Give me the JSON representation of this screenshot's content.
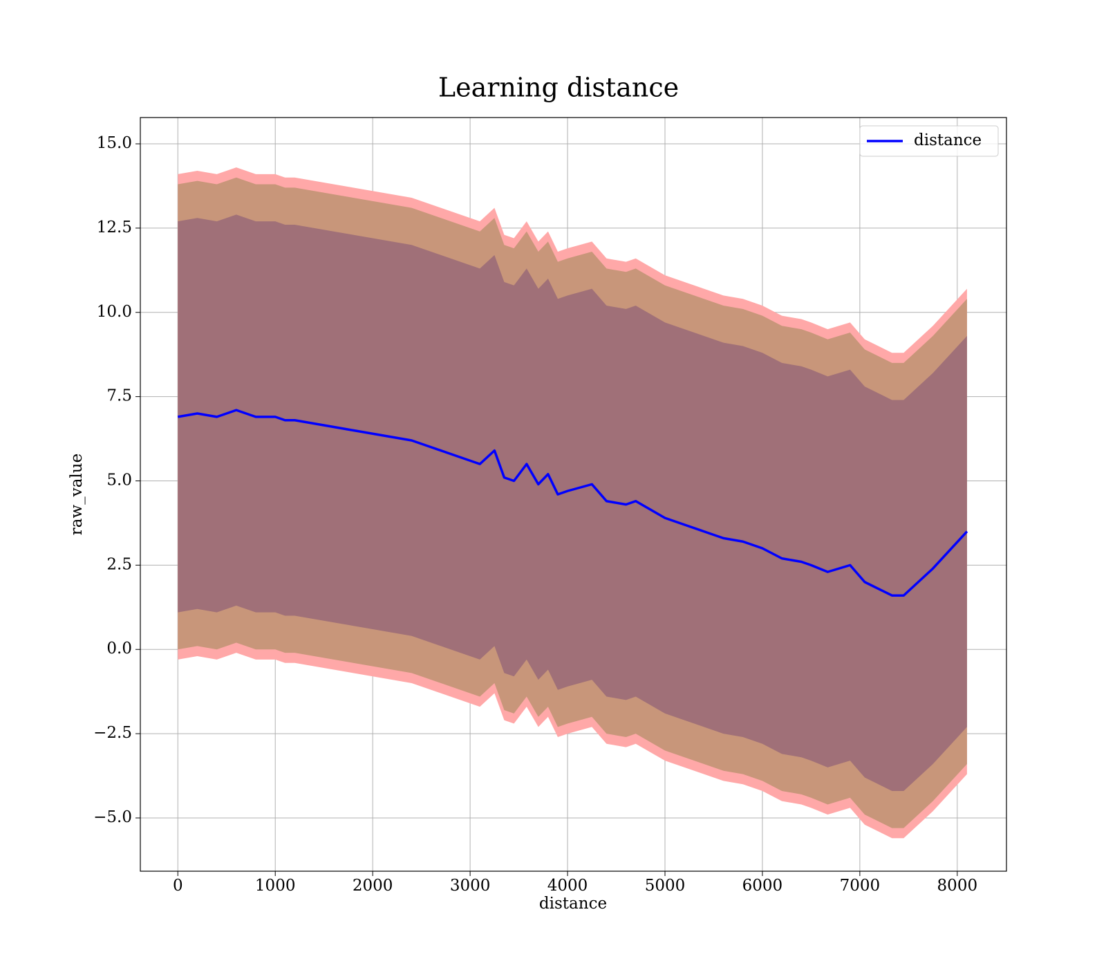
{
  "chart_data": {
    "type": "line",
    "title": "Learning distance",
    "xlabel": "distance",
    "ylabel": "raw_value",
    "x": [
      0,
      200,
      400,
      600,
      800,
      1000,
      1100,
      1200,
      1400,
      1600,
      1800,
      2000,
      2200,
      2400,
      2600,
      2800,
      3000,
      3100,
      3250,
      3350,
      3450,
      3580,
      3700,
      3800,
      3900,
      4000,
      4250,
      4400,
      4600,
      4700,
      5000,
      5200,
      5400,
      5600,
      5800,
      6000,
      6200,
      6400,
      6500,
      6670,
      6900,
      7050,
      7330,
      7450,
      7750,
      8100
    ],
    "series": [
      {
        "name": "distance",
        "color": "#0000ff",
        "values": [
          6.9,
          7.0,
          6.9,
          7.1,
          6.9,
          6.9,
          6.8,
          6.8,
          6.7,
          6.6,
          6.5,
          6.4,
          6.3,
          6.2,
          6.0,
          5.8,
          5.6,
          5.5,
          5.9,
          5.1,
          5.0,
          5.5,
          4.9,
          5.2,
          4.6,
          4.7,
          4.9,
          4.4,
          4.3,
          4.4,
          3.9,
          3.7,
          3.5,
          3.3,
          3.2,
          3.0,
          2.7,
          2.6,
          2.5,
          2.3,
          2.5,
          2.0,
          1.6,
          1.6,
          2.4,
          3.5
        ]
      }
    ],
    "bands": [
      {
        "color": "#ffa8a8",
        "upper": [
          14.1,
          14.2,
          14.1,
          14.3,
          14.1,
          14.1,
          14.0,
          14.0,
          13.9,
          13.8,
          13.7,
          13.6,
          13.5,
          13.4,
          13.2,
          13.0,
          12.8,
          12.7,
          13.1,
          12.3,
          12.2,
          12.7,
          12.1,
          12.4,
          11.8,
          11.9,
          12.1,
          11.6,
          11.5,
          11.6,
          11.1,
          10.9,
          10.7,
          10.5,
          10.4,
          10.2,
          9.9,
          9.8,
          9.7,
          9.5,
          9.7,
          9.2,
          8.8,
          8.8,
          9.6,
          10.7
        ],
        "lower": [
          -0.3,
          -0.2,
          -0.3,
          -0.1,
          -0.3,
          -0.3,
          -0.4,
          -0.4,
          -0.5,
          -0.6,
          -0.7,
          -0.8,
          -0.9,
          -1.0,
          -1.2,
          -1.4,
          -1.6,
          -1.7,
          -1.3,
          -2.1,
          -2.2,
          -1.7,
          -2.3,
          -2.0,
          -2.6,
          -2.5,
          -2.3,
          -2.8,
          -2.9,
          -2.8,
          -3.3,
          -3.5,
          -3.7,
          -3.9,
          -4.0,
          -4.2,
          -4.5,
          -4.6,
          -4.7,
          -4.9,
          -4.7,
          -5.2,
          -5.6,
          -5.6,
          -4.8,
          -3.7
        ]
      },
      {
        "color": "#c8967a",
        "upper": [
          13.8,
          13.9,
          13.8,
          14.0,
          13.8,
          13.8,
          13.7,
          13.7,
          13.6,
          13.5,
          13.4,
          13.3,
          13.2,
          13.1,
          12.9,
          12.7,
          12.5,
          12.4,
          12.8,
          12.0,
          11.9,
          12.4,
          11.8,
          12.1,
          11.5,
          11.6,
          11.8,
          11.3,
          11.2,
          11.3,
          10.8,
          10.6,
          10.4,
          10.2,
          10.1,
          9.9,
          9.6,
          9.5,
          9.4,
          9.2,
          9.4,
          8.9,
          8.5,
          8.5,
          9.3,
          10.4
        ],
        "lower": [
          0.0,
          0.1,
          0.0,
          0.2,
          0.0,
          0.0,
          -0.1,
          -0.1,
          -0.2,
          -0.3,
          -0.4,
          -0.5,
          -0.6,
          -0.7,
          -0.9,
          -1.1,
          -1.3,
          -1.4,
          -1.0,
          -1.8,
          -1.9,
          -1.4,
          -2.0,
          -1.7,
          -2.3,
          -2.2,
          -2.0,
          -2.5,
          -2.6,
          -2.5,
          -3.0,
          -3.2,
          -3.4,
          -3.6,
          -3.7,
          -3.9,
          -4.2,
          -4.3,
          -4.4,
          -4.6,
          -4.4,
          -4.9,
          -5.3,
          -5.3,
          -4.5,
          -3.4
        ]
      },
      {
        "color": "#a07078",
        "upper": [
          12.7,
          12.8,
          12.7,
          12.9,
          12.7,
          12.7,
          12.6,
          12.6,
          12.5,
          12.4,
          12.3,
          12.2,
          12.1,
          12.0,
          11.8,
          11.6,
          11.4,
          11.3,
          11.7,
          10.9,
          10.8,
          11.3,
          10.7,
          11.0,
          10.4,
          10.5,
          10.7,
          10.2,
          10.1,
          10.2,
          9.7,
          9.5,
          9.3,
          9.1,
          9.0,
          8.8,
          8.5,
          8.4,
          8.3,
          8.1,
          8.3,
          7.8,
          7.4,
          7.4,
          8.2,
          9.3
        ],
        "lower": [
          1.1,
          1.2,
          1.1,
          1.3,
          1.1,
          1.1,
          1.0,
          1.0,
          0.9,
          0.8,
          0.7,
          0.6,
          0.5,
          0.4,
          0.2,
          0.0,
          -0.2,
          -0.3,
          0.1,
          -0.7,
          -0.8,
          -0.3,
          -0.9,
          -0.6,
          -1.2,
          -1.1,
          -0.9,
          -1.4,
          -1.5,
          -1.4,
          -1.9,
          -2.1,
          -2.3,
          -2.5,
          -2.6,
          -2.8,
          -3.1,
          -3.2,
          -3.3,
          -3.5,
          -3.3,
          -3.8,
          -4.2,
          -4.2,
          -3.4,
          -2.3
        ]
      }
    ],
    "xlim": [
      -385,
      8505
    ],
    "ylim": [
      -6.58,
      15.78
    ],
    "xticks": [
      0,
      1000,
      2000,
      3000,
      4000,
      5000,
      6000,
      7000,
      8000
    ],
    "yticks": [
      {
        "value": -5,
        "label": "−5.0"
      },
      {
        "value": -2.5,
        "label": "−2.5"
      },
      {
        "value": 0,
        "label": "0.0"
      },
      2.5,
      {
        "value": 5,
        "label": "5.0"
      },
      7.5,
      {
        "value": 10,
        "label": "10.0"
      },
      12.5,
      {
        "value": 15,
        "label": "15.0"
      }
    ],
    "grid": true,
    "legend": "upper right"
  }
}
